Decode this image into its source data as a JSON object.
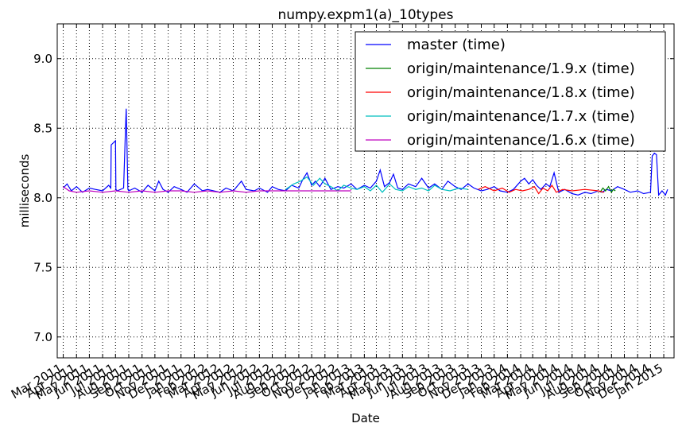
{
  "chart_data": {
    "type": "line",
    "title": "numpy.expm1(a)_10types",
    "xlabel": "Date",
    "ylabel": "milliseconds",
    "ylim": [
      6.85,
      9.25
    ],
    "yticks": [
      7.0,
      7.5,
      8.0,
      8.5,
      9.0
    ],
    "ytick_labels": [
      "7.0",
      "7.5",
      "8.0",
      "8.5",
      "9.0"
    ],
    "xlim": [
      "2011-02-15",
      "2015-01-25"
    ],
    "xticks": [
      "2011-03-01",
      "2011-04-01",
      "2011-05-01",
      "2011-06-01",
      "2011-07-01",
      "2011-08-01",
      "2011-09-01",
      "2011-10-01",
      "2011-11-01",
      "2011-12-01",
      "2012-01-01",
      "2012-02-01",
      "2012-03-01",
      "2012-04-01",
      "2012-05-01",
      "2012-06-01",
      "2012-07-01",
      "2012-08-01",
      "2012-09-01",
      "2012-10-01",
      "2012-11-01",
      "2012-12-01",
      "2013-01-01",
      "2013-02-01",
      "2013-03-01",
      "2013-04-01",
      "2013-05-01",
      "2013-06-01",
      "2013-07-01",
      "2013-08-01",
      "2013-09-01",
      "2013-10-01",
      "2013-11-01",
      "2013-12-01",
      "2014-01-01",
      "2014-02-01",
      "2014-03-01",
      "2014-04-01",
      "2014-05-01",
      "2014-06-01",
      "2014-07-01",
      "2014-08-01",
      "2014-09-01",
      "2014-10-01",
      "2014-11-01",
      "2014-12-01",
      "2015-01-01"
    ],
    "xtick_labels": [
      "Mar 2011",
      "Apr 2011",
      "May 2011",
      "Jun 2011",
      "Jul 2011",
      "Aug 2011",
      "Sep 2011",
      "Oct 2011",
      "Nov 2011",
      "Dec 2011",
      "Jan 2012",
      "Feb 2012",
      "Mar 2012",
      "Apr 2012",
      "May 2012",
      "Jun 2012",
      "Jul 2012",
      "Aug 2012",
      "Sep 2012",
      "Oct 2012",
      "Nov 2012",
      "Dec 2012",
      "Jan 2013",
      "Feb 2013",
      "Mar 2013",
      "Apr 2013",
      "May 2013",
      "Jun 2013",
      "Jul 2013",
      "Aug 2013",
      "Sep 2013",
      "Oct 2013",
      "Nov 2013",
      "Dec 2013",
      "Jan 2014",
      "Feb 2014",
      "Mar 2014",
      "Apr 2014",
      "May 2014",
      "Jun 2014",
      "Jul 2014",
      "Aug 2014",
      "Sep 2014",
      "Oct 2014",
      "Nov 2014",
      "Dec 2014",
      "Jan 2015"
    ],
    "grid": true,
    "legend_position": "top-right",
    "series": [
      {
        "name": "master (time)",
        "color": "#0000ff",
        "x": [
          "2011-03-01",
          "2011-03-10",
          "2011-03-20",
          "2011-04-01",
          "2011-04-15",
          "2011-05-01",
          "2011-05-15",
          "2011-06-01",
          "2011-06-15",
          "2011-06-20",
          "2011-06-21",
          "2011-07-01",
          "2011-07-02",
          "2011-07-05",
          "2011-07-20",
          "2011-07-25",
          "2011-07-26",
          "2011-07-30",
          "2011-08-01",
          "2011-08-15",
          "2011-09-01",
          "2011-09-15",
          "2011-10-01",
          "2011-10-10",
          "2011-10-20",
          "2011-11-01",
          "2011-11-15",
          "2011-12-01",
          "2011-12-15",
          "2012-01-01",
          "2012-01-20",
          "2012-02-01",
          "2012-03-01",
          "2012-03-15",
          "2012-04-01",
          "2012-04-20",
          "2012-05-01",
          "2012-05-20",
          "2012-06-01",
          "2012-06-20",
          "2012-07-01",
          "2012-07-15",
          "2012-08-01",
          "2012-08-15",
          "2012-09-01",
          "2012-09-10",
          "2012-09-20",
          "2012-10-01",
          "2012-10-10",
          "2012-10-20",
          "2012-11-01",
          "2012-11-15",
          "2012-12-01",
          "2012-12-15",
          "2013-01-01",
          "2013-01-15",
          "2013-02-01",
          "2013-02-15",
          "2013-03-01",
          "2013-03-10",
          "2013-03-20",
          "2013-04-01",
          "2013-04-10",
          "2013-04-20",
          "2013-05-01",
          "2013-05-15",
          "2013-06-01",
          "2013-06-15",
          "2013-07-01",
          "2013-07-15",
          "2013-08-01",
          "2013-08-15",
          "2013-09-01",
          "2013-09-15",
          "2013-10-01",
          "2013-10-15",
          "2013-11-01",
          "2013-11-15",
          "2013-12-01",
          "2013-12-15",
          "2014-01-01",
          "2014-01-15",
          "2014-02-01",
          "2014-02-10",
          "2014-02-20",
          "2014-03-01",
          "2014-03-10",
          "2014-03-20",
          "2014-04-01",
          "2014-04-10",
          "2014-04-20",
          "2014-05-01",
          "2014-05-15",
          "2014-06-01",
          "2014-06-15",
          "2014-07-01",
          "2014-07-15",
          "2014-08-01",
          "2014-08-10",
          "2014-08-20",
          "2014-09-01",
          "2014-09-15",
          "2014-10-01",
          "2014-10-15",
          "2014-11-01",
          "2014-11-15",
          "2014-12-01",
          "2014-12-05",
          "2014-12-10",
          "2014-12-15",
          "2014-12-20",
          "2014-12-28",
          "2015-01-05",
          "2015-01-10"
        ],
        "y": [
          8.07,
          8.1,
          8.05,
          8.08,
          8.04,
          8.07,
          8.06,
          8.05,
          8.09,
          8.07,
          8.38,
          8.41,
          8.06,
          8.05,
          8.07,
          8.55,
          8.64,
          8.06,
          8.05,
          8.07,
          8.04,
          8.09,
          8.05,
          8.12,
          8.06,
          8.04,
          8.08,
          8.06,
          8.04,
          8.1,
          8.05,
          8.06,
          8.04,
          8.07,
          8.05,
          8.12,
          8.06,
          8.05,
          8.07,
          8.04,
          8.08,
          8.06,
          8.05,
          8.09,
          8.07,
          8.13,
          8.18,
          8.09,
          8.12,
          8.08,
          8.14,
          8.06,
          8.08,
          8.07,
          8.1,
          8.06,
          8.09,
          8.07,
          8.12,
          8.2,
          8.08,
          8.11,
          8.17,
          8.07,
          8.06,
          8.1,
          8.08,
          8.14,
          8.07,
          8.1,
          8.06,
          8.12,
          8.08,
          8.06,
          8.1,
          8.07,
          8.05,
          8.06,
          8.08,
          8.05,
          8.04,
          8.06,
          8.12,
          8.14,
          8.1,
          8.13,
          8.09,
          8.06,
          8.1,
          8.08,
          8.18,
          8.04,
          8.06,
          8.03,
          8.02,
          8.04,
          8.03,
          8.05,
          8.04,
          8.06,
          8.05,
          8.08,
          8.06,
          8.04,
          8.05,
          8.03,
          8.04,
          8.3,
          8.32,
          8.31,
          8.02,
          8.05,
          8.02,
          8.06
        ]
      },
      {
        "name": "origin/maintenance/1.9.x (time)",
        "color": "#008000",
        "x": [
          "2014-08-05",
          "2014-08-12",
          "2014-08-18",
          "2014-08-25",
          "2014-09-01",
          "2014-09-05",
          "2014-09-10"
        ],
        "y": [
          8.04,
          8.07,
          8.05,
          8.08,
          8.04,
          8.06,
          8.05
        ]
      },
      {
        "name": "origin/maintenance/1.8.x (time)",
        "color": "#ff0000",
        "x": [
          "2013-10-25",
          "2013-11-10",
          "2013-12-01",
          "2013-12-20",
          "2014-01-05",
          "2014-01-20",
          "2014-02-05",
          "2014-02-20",
          "2014-03-05",
          "2014-03-15",
          "2014-03-25",
          "2014-04-05",
          "2014-04-15",
          "2014-04-25",
          "2014-05-10",
          "2014-06-01",
          "2014-07-01",
          "2014-08-01",
          "2014-08-15"
        ],
        "y": [
          8.06,
          8.08,
          8.05,
          8.07,
          8.04,
          8.06,
          8.05,
          8.06,
          8.08,
          8.03,
          8.07,
          8.05,
          8.09,
          8.04,
          8.06,
          8.05,
          8.06,
          8.05,
          8.04
        ]
      },
      {
        "name": "origin/maintenance/1.7.x (time)",
        "color": "#00bfbf",
        "x": [
          "2012-08-01",
          "2012-08-20",
          "2012-09-05",
          "2012-09-20",
          "2012-10-05",
          "2012-10-20",
          "2012-11-01",
          "2012-11-15",
          "2012-12-01",
          "2012-12-15",
          "2013-01-01",
          "2013-01-15",
          "2013-02-01",
          "2013-02-15",
          "2013-03-01",
          "2013-03-15",
          "2013-04-01",
          "2013-04-15",
          "2013-05-01",
          "2013-05-15",
          "2013-06-01",
          "2013-06-15",
          "2013-07-01",
          "2013-07-15",
          "2013-08-01",
          "2013-08-20",
          "2013-09-10",
          "2013-10-01"
        ],
        "y": [
          8.06,
          8.1,
          8.12,
          8.15,
          8.09,
          8.14,
          8.1,
          8.08,
          8.05,
          8.09,
          8.07,
          8.06,
          8.08,
          8.05,
          8.09,
          8.04,
          8.1,
          8.06,
          8.05,
          8.08,
          8.06,
          8.07,
          8.05,
          8.09,
          8.06,
          8.05,
          8.07,
          8.06
        ]
      },
      {
        "name": "origin/maintenance/1.6.x (time)",
        "color": "#bf00bf",
        "x": [
          "2011-03-01",
          "2011-03-15",
          "2011-04-01",
          "2011-05-01",
          "2011-06-01",
          "2011-07-01",
          "2011-08-01",
          "2011-09-01",
          "2011-10-01",
          "2011-11-01",
          "2011-12-01",
          "2012-01-01",
          "2012-02-01",
          "2012-03-01",
          "2012-04-01",
          "2012-05-01",
          "2012-06-01",
          "2012-07-01",
          "2012-08-01",
          "2012-09-01",
          "2012-10-01",
          "2012-11-01",
          "2012-12-01",
          "2013-01-01"
        ],
        "y": [
          8.08,
          8.05,
          8.04,
          8.05,
          8.04,
          8.05,
          8.04,
          8.05,
          8.04,
          8.05,
          8.05,
          8.04,
          8.05,
          8.04,
          8.05,
          8.04,
          8.05,
          8.05,
          8.05,
          8.05,
          8.05,
          8.05,
          8.05,
          8.05
        ]
      }
    ]
  }
}
